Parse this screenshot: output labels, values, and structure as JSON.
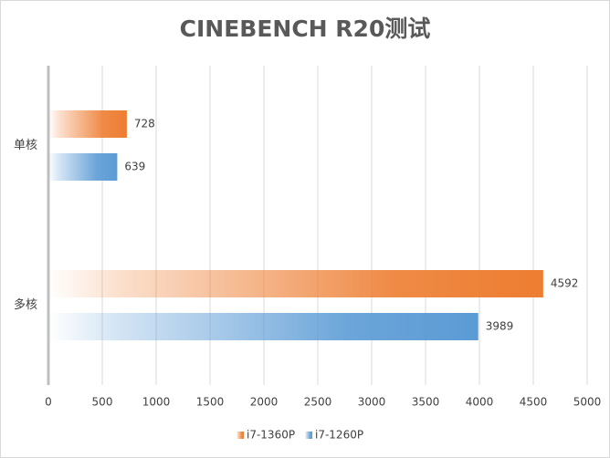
{
  "chart_data": {
    "type": "hbar",
    "title": "CINEBENCH R20测试",
    "categories": [
      "单核",
      "多核"
    ],
    "series": [
      {
        "name": "i7-1360P",
        "color": "#ed7d31",
        "values": [
          728,
          4592
        ]
      },
      {
        "name": "i7-1260P",
        "color": "#5b9bd5",
        "values": [
          639,
          3989
        ]
      }
    ],
    "xlim": [
      0,
      5000
    ],
    "xticks": [
      0,
      500,
      1000,
      1500,
      2000,
      2500,
      3000,
      3500,
      4000,
      4500,
      5000
    ],
    "grid": true,
    "legend": "bottom"
  }
}
